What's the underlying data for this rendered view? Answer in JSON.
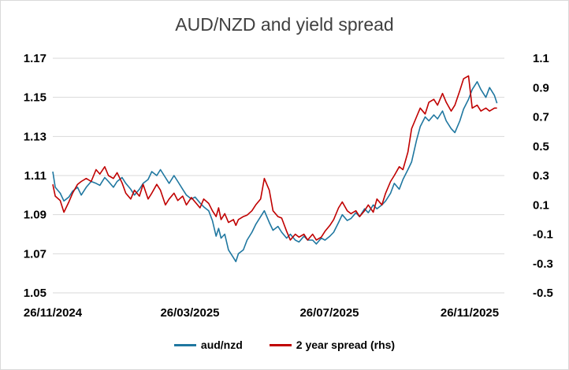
{
  "chart_data": {
    "type": "line",
    "title": "AUD/NZD and yield spread",
    "x_ticks": [
      "26/11/2024",
      "26/03/2025",
      "26/07/2025",
      "26/11/2025"
    ],
    "x_range": [
      "2024-11-26",
      "2025-11-26"
    ],
    "y_left": {
      "ticks": [
        "1.17",
        "1.15",
        "1.13",
        "1.11",
        "1.09",
        "1.07",
        "1.05"
      ],
      "min": 1.05,
      "max": 1.17
    },
    "y_right": {
      "ticks": [
        "1.1",
        "0.9",
        "0.7",
        "0.5",
        "0.3",
        "0.1",
        "-0.1",
        "-0.3",
        "-0.5"
      ],
      "min": -0.5,
      "max": 1.1
    },
    "grid": "horizontal",
    "legend_position": "bottom",
    "series": [
      {
        "name": "aud/nzd",
        "axis": "left",
        "color": "#1f77a0",
        "points": [
          [
            "2024-11-26",
            1.112
          ],
          [
            "2024-11-28",
            1.104
          ],
          [
            "2024-12-02",
            1.101
          ],
          [
            "2024-12-05",
            1.097
          ],
          [
            "2024-12-09",
            1.099
          ],
          [
            "2024-12-12",
            1.102
          ],
          [
            "2024-12-16",
            1.104
          ],
          [
            "2024-12-19",
            1.1
          ],
          [
            "2024-12-23",
            1.104
          ],
          [
            "2024-12-27",
            1.107
          ],
          [
            "2024-12-31",
            1.106
          ],
          [
            "2025-01-03",
            1.105
          ],
          [
            "2025-01-07",
            1.109
          ],
          [
            "2025-01-10",
            1.107
          ],
          [
            "2025-01-14",
            1.104
          ],
          [
            "2025-01-17",
            1.107
          ],
          [
            "2025-01-21",
            1.109
          ],
          [
            "2025-01-24",
            1.106
          ],
          [
            "2025-01-28",
            1.103
          ],
          [
            "2025-01-31",
            1.1
          ],
          [
            "2025-02-04",
            1.103
          ],
          [
            "2025-02-07",
            1.106
          ],
          [
            "2025-02-11",
            1.108
          ],
          [
            "2025-02-14",
            1.112
          ],
          [
            "2025-02-18",
            1.11
          ],
          [
            "2025-02-21",
            1.113
          ],
          [
            "2025-02-25",
            1.109
          ],
          [
            "2025-02-28",
            1.106
          ],
          [
            "2025-03-04",
            1.11
          ],
          [
            "2025-03-07",
            1.107
          ],
          [
            "2025-03-11",
            1.103
          ],
          [
            "2025-03-14",
            1.1
          ],
          [
            "2025-03-18",
            1.098
          ],
          [
            "2025-03-21",
            1.099
          ],
          [
            "2025-03-25",
            1.096
          ],
          [
            "2025-03-28",
            1.094
          ],
          [
            "2025-04-01",
            1.092
          ],
          [
            "2025-04-04",
            1.087
          ],
          [
            "2025-04-07",
            1.079
          ],
          [
            "2025-04-09",
            1.083
          ],
          [
            "2025-04-11",
            1.078
          ],
          [
            "2025-04-14",
            1.08
          ],
          [
            "2025-04-17",
            1.072
          ],
          [
            "2025-04-21",
            1.068
          ],
          [
            "2025-04-23",
            1.066
          ],
          [
            "2025-04-25",
            1.07
          ],
          [
            "2025-04-29",
            1.072
          ],
          [
            "2025-05-02",
            1.077
          ],
          [
            "2025-05-06",
            1.081
          ],
          [
            "2025-05-09",
            1.085
          ],
          [
            "2025-05-13",
            1.089
          ],
          [
            "2025-05-16",
            1.092
          ],
          [
            "2025-05-20",
            1.086
          ],
          [
            "2025-05-23",
            1.082
          ],
          [
            "2025-05-27",
            1.084
          ],
          [
            "2025-05-30",
            1.081
          ],
          [
            "2025-06-03",
            1.078
          ],
          [
            "2025-06-06",
            1.08
          ],
          [
            "2025-06-10",
            1.077
          ],
          [
            "2025-06-13",
            1.076
          ],
          [
            "2025-06-17",
            1.079
          ],
          [
            "2025-06-20",
            1.077
          ],
          [
            "2025-06-24",
            1.077
          ],
          [
            "2025-06-27",
            1.075
          ],
          [
            "2025-07-01",
            1.078
          ],
          [
            "2025-07-04",
            1.077
          ],
          [
            "2025-07-08",
            1.079
          ],
          [
            "2025-07-11",
            1.081
          ],
          [
            "2025-07-15",
            1.086
          ],
          [
            "2025-07-18",
            1.09
          ],
          [
            "2025-07-22",
            1.087
          ],
          [
            "2025-07-25",
            1.088
          ],
          [
            "2025-07-29",
            1.091
          ],
          [
            "2025-08-01",
            1.089
          ],
          [
            "2025-08-05",
            1.093
          ],
          [
            "2025-08-08",
            1.091
          ],
          [
            "2025-08-12",
            1.095
          ],
          [
            "2025-08-15",
            1.093
          ],
          [
            "2025-08-19",
            1.095
          ],
          [
            "2025-08-22",
            1.097
          ],
          [
            "2025-08-26",
            1.101
          ],
          [
            "2025-08-29",
            1.106
          ],
          [
            "2025-09-02",
            1.103
          ],
          [
            "2025-09-05",
            1.108
          ],
          [
            "2025-09-09",
            1.113
          ],
          [
            "2025-09-12",
            1.117
          ],
          [
            "2025-09-16",
            1.128
          ],
          [
            "2025-09-19",
            1.135
          ],
          [
            "2025-09-23",
            1.14
          ],
          [
            "2025-09-26",
            1.138
          ],
          [
            "2025-09-30",
            1.141
          ],
          [
            "2025-10-03",
            1.139
          ],
          [
            "2025-10-07",
            1.143
          ],
          [
            "2025-10-10",
            1.138
          ],
          [
            "2025-10-14",
            1.134
          ],
          [
            "2025-10-17",
            1.132
          ],
          [
            "2025-10-21",
            1.138
          ],
          [
            "2025-10-24",
            1.144
          ],
          [
            "2025-10-28",
            1.149
          ],
          [
            "2025-10-31",
            1.154
          ],
          [
            "2025-11-04",
            1.158
          ],
          [
            "2025-11-07",
            1.154
          ],
          [
            "2025-11-11",
            1.15
          ],
          [
            "2025-11-14",
            1.155
          ],
          [
            "2025-11-18",
            1.151
          ],
          [
            "2025-11-20",
            1.147
          ]
        ]
      },
      {
        "name": "2 year spread (rhs)",
        "axis": "right",
        "color": "#c00000",
        "points": [
          [
            "2024-11-26",
            0.24
          ],
          [
            "2024-11-28",
            0.16
          ],
          [
            "2024-12-02",
            0.13
          ],
          [
            "2024-12-05",
            0.05
          ],
          [
            "2024-12-09",
            0.12
          ],
          [
            "2024-12-12",
            0.18
          ],
          [
            "2024-12-16",
            0.24
          ],
          [
            "2024-12-19",
            0.26
          ],
          [
            "2024-12-23",
            0.28
          ],
          [
            "2024-12-27",
            0.26
          ],
          [
            "2024-12-31",
            0.34
          ],
          [
            "2025-01-03",
            0.31
          ],
          [
            "2025-01-07",
            0.36
          ],
          [
            "2025-01-10",
            0.3
          ],
          [
            "2025-01-14",
            0.28
          ],
          [
            "2025-01-17",
            0.32
          ],
          [
            "2025-01-21",
            0.25
          ],
          [
            "2025-01-24",
            0.18
          ],
          [
            "2025-01-28",
            0.14
          ],
          [
            "2025-01-31",
            0.2
          ],
          [
            "2025-02-04",
            0.16
          ],
          [
            "2025-02-07",
            0.24
          ],
          [
            "2025-02-11",
            0.14
          ],
          [
            "2025-02-14",
            0.18
          ],
          [
            "2025-02-18",
            0.24
          ],
          [
            "2025-02-21",
            0.2
          ],
          [
            "2025-02-25",
            0.1
          ],
          [
            "2025-02-28",
            0.14
          ],
          [
            "2025-03-04",
            0.18
          ],
          [
            "2025-03-07",
            0.13
          ],
          [
            "2025-03-11",
            0.16
          ],
          [
            "2025-03-14",
            0.1
          ],
          [
            "2025-03-18",
            0.15
          ],
          [
            "2025-03-21",
            0.12
          ],
          [
            "2025-03-25",
            0.08
          ],
          [
            "2025-03-28",
            0.14
          ],
          [
            "2025-04-01",
            0.11
          ],
          [
            "2025-04-04",
            0.06
          ],
          [
            "2025-04-07",
            0.02
          ],
          [
            "2025-04-09",
            0.08
          ],
          [
            "2025-04-11",
            0.0
          ],
          [
            "2025-04-14",
            0.04
          ],
          [
            "2025-04-17",
            -0.02
          ],
          [
            "2025-04-21",
            0.0
          ],
          [
            "2025-04-23",
            -0.04
          ],
          [
            "2025-04-25",
            0.0
          ],
          [
            "2025-04-29",
            0.02
          ],
          [
            "2025-05-02",
            0.03
          ],
          [
            "2025-05-06",
            0.06
          ],
          [
            "2025-05-09",
            0.1
          ],
          [
            "2025-05-13",
            0.14
          ],
          [
            "2025-05-16",
            0.28
          ],
          [
            "2025-05-20",
            0.2
          ],
          [
            "2025-05-23",
            0.06
          ],
          [
            "2025-05-27",
            0.02
          ],
          [
            "2025-05-30",
            0.01
          ],
          [
            "2025-06-03",
            -0.08
          ],
          [
            "2025-06-06",
            -0.14
          ],
          [
            "2025-06-10",
            -0.1
          ],
          [
            "2025-06-13",
            -0.12
          ],
          [
            "2025-06-17",
            -0.1
          ],
          [
            "2025-06-20",
            -0.14
          ],
          [
            "2025-06-24",
            -0.1
          ],
          [
            "2025-06-27",
            -0.14
          ],
          [
            "2025-07-01",
            -0.12
          ],
          [
            "2025-07-04",
            -0.08
          ],
          [
            "2025-07-08",
            -0.04
          ],
          [
            "2025-07-11",
            0.0
          ],
          [
            "2025-07-15",
            0.08
          ],
          [
            "2025-07-18",
            0.12
          ],
          [
            "2025-07-22",
            0.06
          ],
          [
            "2025-07-25",
            0.04
          ],
          [
            "2025-07-29",
            0.06
          ],
          [
            "2025-08-01",
            0.02
          ],
          [
            "2025-08-05",
            0.06
          ],
          [
            "2025-08-08",
            0.1
          ],
          [
            "2025-08-12",
            0.05
          ],
          [
            "2025-08-15",
            0.14
          ],
          [
            "2025-08-19",
            0.1
          ],
          [
            "2025-08-22",
            0.18
          ],
          [
            "2025-08-26",
            0.26
          ],
          [
            "2025-08-29",
            0.3
          ],
          [
            "2025-09-02",
            0.36
          ],
          [
            "2025-09-05",
            0.34
          ],
          [
            "2025-09-09",
            0.46
          ],
          [
            "2025-09-12",
            0.62
          ],
          [
            "2025-09-16",
            0.7
          ],
          [
            "2025-09-19",
            0.76
          ],
          [
            "2025-09-23",
            0.72
          ],
          [
            "2025-09-26",
            0.8
          ],
          [
            "2025-09-30",
            0.82
          ],
          [
            "2025-10-03",
            0.78
          ],
          [
            "2025-10-07",
            0.86
          ],
          [
            "2025-10-10",
            0.8
          ],
          [
            "2025-10-14",
            0.74
          ],
          [
            "2025-10-17",
            0.78
          ],
          [
            "2025-10-21",
            0.88
          ],
          [
            "2025-10-24",
            0.96
          ],
          [
            "2025-10-28",
            0.98
          ],
          [
            "2025-10-31",
            0.76
          ],
          [
            "2025-11-04",
            0.78
          ],
          [
            "2025-11-07",
            0.74
          ],
          [
            "2025-11-11",
            0.76
          ],
          [
            "2025-11-14",
            0.74
          ],
          [
            "2025-11-18",
            0.76
          ],
          [
            "2025-11-20",
            0.76
          ]
        ]
      }
    ]
  }
}
